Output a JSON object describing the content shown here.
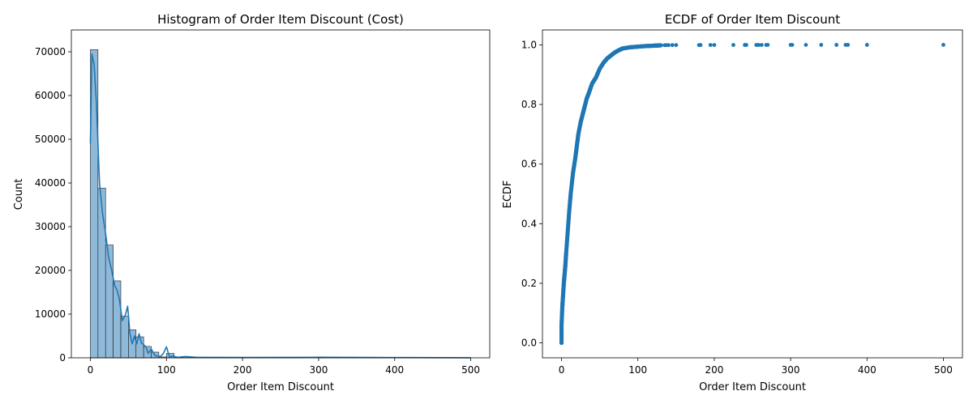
{
  "chart_data": [
    {
      "type": "bar",
      "title": "Histogram of Order Item Discount (Cost)",
      "xlabel": "Order Item Discount",
      "ylabel": "Count",
      "xlim": [
        -25,
        525
      ],
      "ylim": [
        0,
        75000
      ],
      "xticks": [
        "0",
        "100",
        "200",
        "300",
        "400",
        "500"
      ],
      "yticks": [
        "0",
        "10000",
        "20000",
        "30000",
        "40000",
        "50000",
        "60000",
        "70000"
      ],
      "bin_width": 10,
      "bins": [
        {
          "x0": 0,
          "value": 70500
        },
        {
          "x0": 10,
          "value": 38800
        },
        {
          "x0": 20,
          "value": 25800
        },
        {
          "x0": 30,
          "value": 17600
        },
        {
          "x0": 40,
          "value": 9500
        },
        {
          "x0": 50,
          "value": 6400
        },
        {
          "x0": 60,
          "value": 4800
        },
        {
          "x0": 70,
          "value": 2600
        },
        {
          "x0": 80,
          "value": 1300
        },
        {
          "x0": 90,
          "value": 200
        },
        {
          "x0": 100,
          "value": 1000
        },
        {
          "x0": 110,
          "value": 50
        },
        {
          "x0": 120,
          "value": 300
        },
        {
          "x0": 130,
          "value": 100
        },
        {
          "x0": 140,
          "value": 50
        },
        {
          "x0": 150,
          "value": 100
        },
        {
          "x0": 160,
          "value": 30
        },
        {
          "x0": 170,
          "value": 20
        },
        {
          "x0": 180,
          "value": 100
        },
        {
          "x0": 190,
          "value": 60
        },
        {
          "x0": 200,
          "value": 40
        },
        {
          "x0": 220,
          "value": 60
        },
        {
          "x0": 240,
          "value": 60
        },
        {
          "x0": 250,
          "value": 60
        },
        {
          "x0": 260,
          "value": 30
        },
        {
          "x0": 270,
          "value": 30
        },
        {
          "x0": 300,
          "value": 80
        },
        {
          "x0": 320,
          "value": 20
        },
        {
          "x0": 340,
          "value": 20
        },
        {
          "x0": 360,
          "value": 20
        },
        {
          "x0": 370,
          "value": 40
        },
        {
          "x0": 400,
          "value": 20
        },
        {
          "x0": 490,
          "value": 20
        }
      ],
      "kde": {
        "x": [
          0,
          2,
          5,
          8,
          12,
          16,
          20,
          24,
          28,
          32,
          35,
          38,
          42,
          46,
          49,
          52,
          55,
          58,
          61,
          64,
          67,
          70,
          73,
          76,
          80,
          85,
          88,
          92,
          96,
          100,
          104,
          108,
          115,
          125,
          140,
          200,
          300,
          400,
          500
        ],
        "y": [
          49000,
          69500,
          67000,
          58000,
          40000,
          33000,
          28500,
          23000,
          20000,
          16500,
          15500,
          13500,
          8500,
          9800,
          11800,
          5500,
          3200,
          5000,
          3200,
          5500,
          3400,
          3000,
          2500,
          1000,
          2000,
          500,
          400,
          300,
          1000,
          2500,
          200,
          400,
          100,
          300,
          100,
          80,
          120,
          60,
          20
        ]
      },
      "colors": {
        "bar_fill": "#8fb9d9",
        "bar_edge": "#1c1c1c",
        "kde": "#1f77b4"
      }
    },
    {
      "type": "scatter",
      "title": "ECDF of Order Item Discount",
      "xlabel": "Order Item Discount",
      "ylabel": "ECDF",
      "xlim": [
        -25,
        525
      ],
      "ylim": [
        -0.05,
        1.05
      ],
      "xticks": [
        "0",
        "100",
        "200",
        "300",
        "400",
        "500"
      ],
      "yticks": [
        "0.0",
        "0.2",
        "0.4",
        "0.6",
        "0.8",
        "1.0"
      ],
      "curve": {
        "x": [
          0,
          0,
          1,
          2,
          3,
          4,
          5,
          6,
          8,
          10,
          12,
          15,
          18,
          20,
          22,
          25,
          28,
          30,
          33,
          36,
          40,
          45,
          50,
          55,
          60,
          65,
          70,
          75,
          80,
          90,
          100,
          110,
          120,
          125,
          130
        ],
        "y": [
          0.0,
          0.06,
          0.12,
          0.16,
          0.2,
          0.23,
          0.26,
          0.3,
          0.37,
          0.44,
          0.5,
          0.57,
          0.62,
          0.66,
          0.7,
          0.74,
          0.77,
          0.79,
          0.82,
          0.84,
          0.87,
          0.89,
          0.92,
          0.94,
          0.955,
          0.965,
          0.975,
          0.982,
          0.988,
          0.992,
          0.994,
          0.996,
          0.997,
          0.998,
          0.9985
        ]
      },
      "points": {
        "x": [
          135,
          137,
          140,
          145,
          150,
          180,
          182,
          195,
          200,
          225,
          240,
          242,
          255,
          258,
          262,
          268,
          270,
          300,
          302,
          320,
          340,
          360,
          372,
          375,
          400,
          500
        ],
        "y": [
          0.9988,
          0.999,
          0.999,
          0.9992,
          0.9993,
          0.9994,
          0.9994,
          0.9995,
          0.9995,
          0.9996,
          0.9996,
          0.9996,
          0.9997,
          0.9997,
          0.9997,
          0.9997,
          0.9998,
          0.9998,
          0.9998,
          0.9998,
          0.9999,
          0.9999,
          0.9999,
          0.9999,
          0.9999,
          1.0
        ]
      },
      "colors": {
        "marker": "#1f77b4"
      }
    }
  ]
}
